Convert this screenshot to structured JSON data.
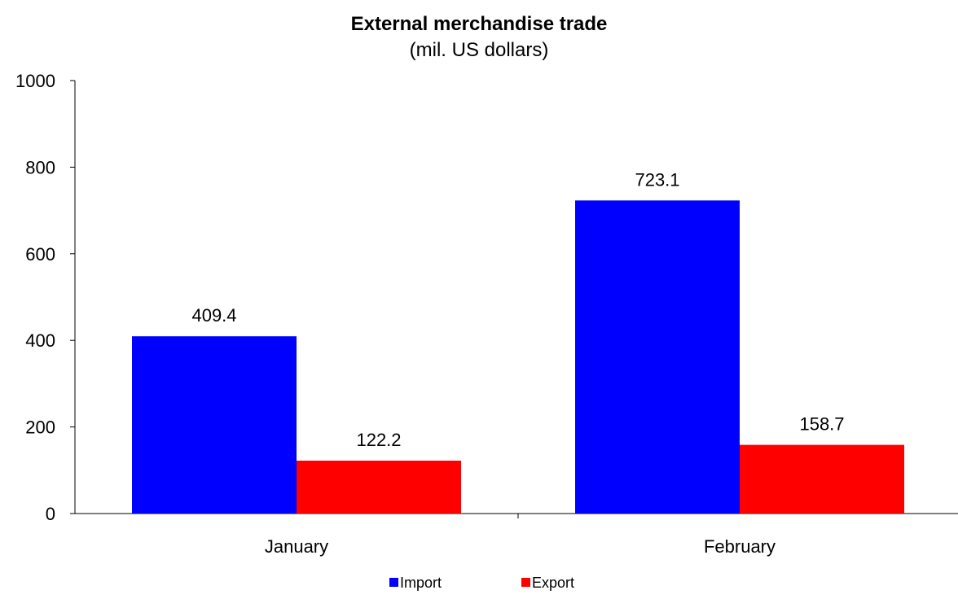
{
  "chart_data": {
    "type": "bar",
    "title": "External merchandise trade",
    "subtitle": "(mil. US dollars)",
    "categories": [
      "January",
      "February"
    ],
    "series": [
      {
        "name": "Import",
        "color": "#0000ff",
        "values": [
          409.4,
          723.1
        ]
      },
      {
        "name": "Export",
        "color": "#ff0000",
        "values": [
          122.2,
          158.7
        ]
      }
    ],
    "data_labels": [
      [
        "409.4",
        "723.1"
      ],
      [
        "122.2",
        "158.7"
      ]
    ],
    "ylim": [
      0,
      1000
    ],
    "yticks": [
      0,
      200,
      400,
      600,
      800,
      1000
    ],
    "xlabel": "",
    "ylabel": "",
    "grid": false,
    "legend_position": "bottom"
  }
}
